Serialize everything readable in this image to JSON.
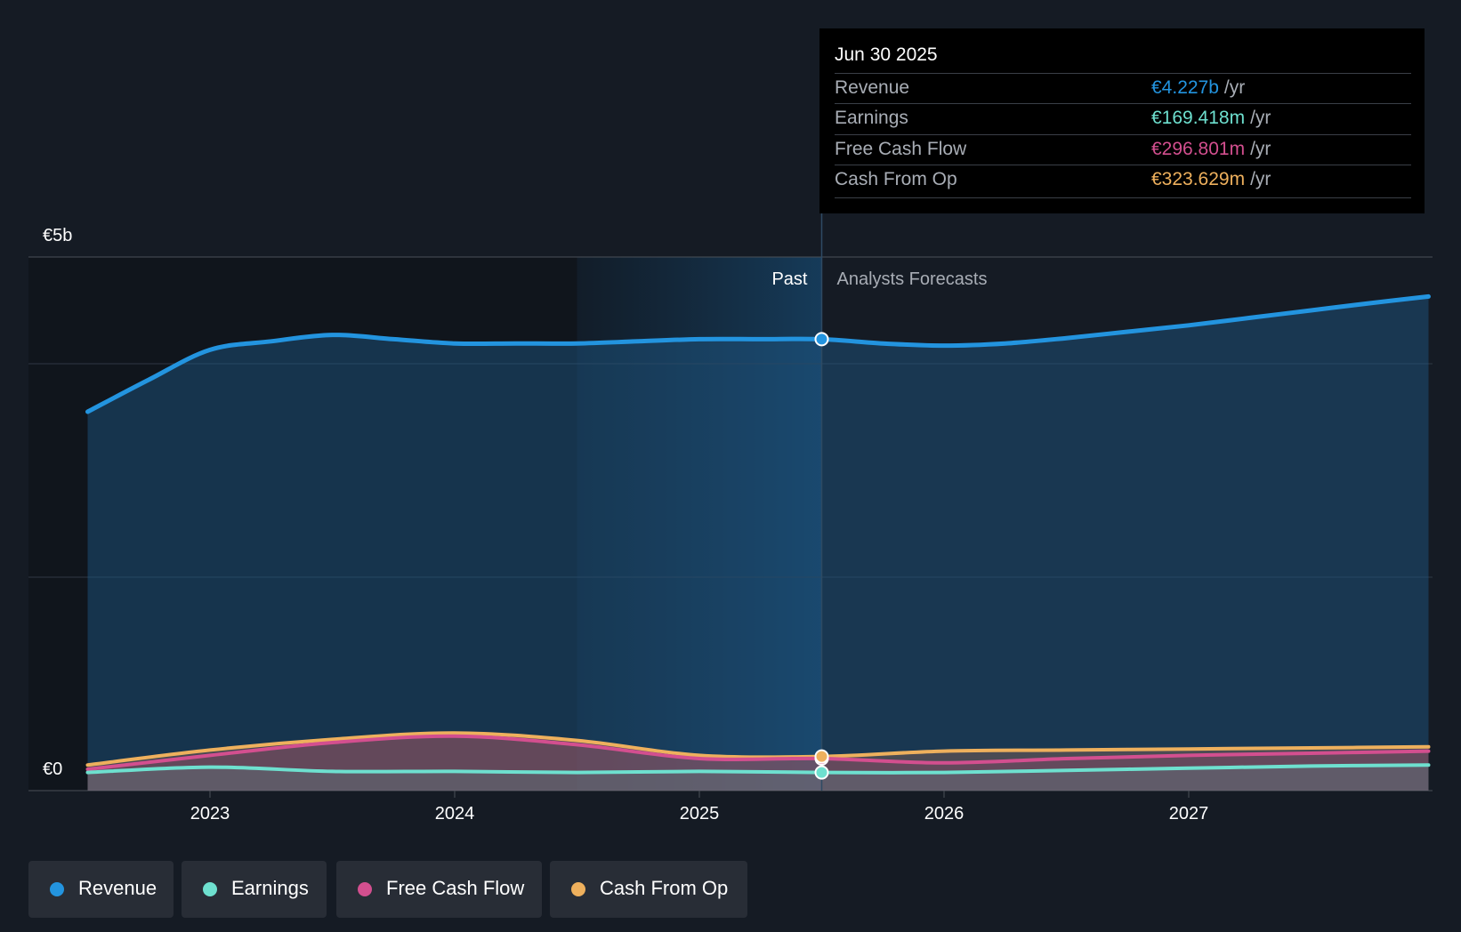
{
  "chart_data": {
    "type": "area",
    "y_axis": {
      "min": 0,
      "max": 5,
      "unit": "€b",
      "top_label": "€5b",
      "bottom_label": "€0"
    },
    "x_ticks": [
      2023,
      2024,
      2025,
      2026,
      2027
    ],
    "x_range": [
      2022.25,
      2027.98
    ],
    "past_label": "Past",
    "forecast_label": "Analysts Forecasts",
    "divider_x": 2025.5,
    "shade_start_x": 2024.5,
    "series": [
      {
        "name": "Revenue",
        "color": "#2394df",
        "points": [
          [
            2022.5,
            3.55
          ],
          [
            2022.75,
            3.85
          ],
          [
            2023.0,
            4.13
          ],
          [
            2023.25,
            4.21
          ],
          [
            2023.5,
            4.27
          ],
          [
            2023.75,
            4.23
          ],
          [
            2024.0,
            4.19
          ],
          [
            2024.25,
            4.19
          ],
          [
            2024.5,
            4.19
          ],
          [
            2024.75,
            4.21
          ],
          [
            2025.0,
            4.23
          ],
          [
            2025.25,
            4.23
          ],
          [
            2025.5,
            4.23
          ],
          [
            2025.75,
            4.19
          ],
          [
            2026.0,
            4.17
          ],
          [
            2026.25,
            4.19
          ],
          [
            2026.5,
            4.24
          ],
          [
            2026.75,
            4.3
          ],
          [
            2027.0,
            4.36
          ],
          [
            2027.25,
            4.43
          ],
          [
            2027.5,
            4.5
          ],
          [
            2027.75,
            4.57
          ],
          [
            2027.98,
            4.63
          ]
        ]
      },
      {
        "name": "Earnings",
        "color": "#6ee0cf",
        "points": [
          [
            2022.5,
            0.17
          ],
          [
            2023.0,
            0.22
          ],
          [
            2023.5,
            0.18
          ],
          [
            2024.0,
            0.18
          ],
          [
            2024.5,
            0.17
          ],
          [
            2025.0,
            0.18
          ],
          [
            2025.5,
            0.17
          ],
          [
            2026.0,
            0.17
          ],
          [
            2026.5,
            0.19
          ],
          [
            2027.0,
            0.21
          ],
          [
            2027.5,
            0.23
          ],
          [
            2027.98,
            0.24
          ]
        ]
      },
      {
        "name": "Free Cash Flow",
        "color": "#d34f8f",
        "points": [
          [
            2022.5,
            0.2
          ],
          [
            2023.0,
            0.33
          ],
          [
            2023.5,
            0.45
          ],
          [
            2024.0,
            0.51
          ],
          [
            2024.5,
            0.43
          ],
          [
            2025.0,
            0.3
          ],
          [
            2025.5,
            0.3
          ],
          [
            2026.0,
            0.26
          ],
          [
            2026.5,
            0.3
          ],
          [
            2027.0,
            0.33
          ],
          [
            2027.5,
            0.35
          ],
          [
            2027.98,
            0.37
          ]
        ]
      },
      {
        "name": "Cash From Op",
        "color": "#eeb05d",
        "points": [
          [
            2022.5,
            0.24
          ],
          [
            2023.0,
            0.38
          ],
          [
            2023.5,
            0.48
          ],
          [
            2024.0,
            0.54
          ],
          [
            2024.5,
            0.47
          ],
          [
            2025.0,
            0.33
          ],
          [
            2025.5,
            0.32
          ],
          [
            2026.0,
            0.37
          ],
          [
            2026.5,
            0.38
          ],
          [
            2027.0,
            0.39
          ],
          [
            2027.5,
            0.4
          ],
          [
            2027.98,
            0.41
          ]
        ]
      }
    ]
  },
  "tooltip": {
    "date": "Jun 30 2025",
    "rows": [
      {
        "label": "Revenue",
        "value": "€4.227b",
        "unit": "/yr",
        "color": "#2394df"
      },
      {
        "label": "Earnings",
        "value": "€169.418m",
        "unit": "/yr",
        "color": "#6ee0cf"
      },
      {
        "label": "Free Cash Flow",
        "value": "€296.801m",
        "unit": "/yr",
        "color": "#d34f8f"
      },
      {
        "label": "Cash From Op",
        "value": "€323.629m",
        "unit": "/yr",
        "color": "#eeb05d"
      }
    ]
  },
  "legend": [
    {
      "label": "Revenue",
      "color": "#2394df"
    },
    {
      "label": "Earnings",
      "color": "#6ee0cf"
    },
    {
      "label": "Free Cash Flow",
      "color": "#d34f8f"
    },
    {
      "label": "Cash From Op",
      "color": "#eeb05d"
    }
  ]
}
